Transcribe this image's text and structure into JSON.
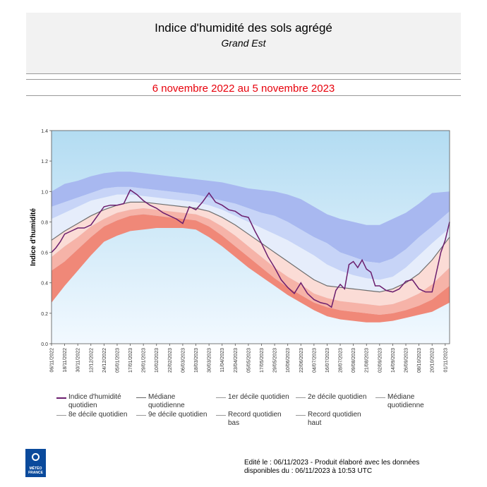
{
  "header": {
    "title": "Indice d'humidité des sols agrégé",
    "subtitle": "Grand Est",
    "period": "6 novembre 2022 au 5 novembre 2023"
  },
  "logo": {
    "text_line1": "MÉTÉO",
    "text_line2": "FRANCE",
    "color": "#0a4a9c"
  },
  "footer": {
    "line1": "Edité le : 06/11/2023 - Produit élaboré avec les données",
    "line2": "disponibles du : 06/11/2023 à 10:53 UTC"
  },
  "legend": [
    {
      "label": "Indice d'humidité quotidien",
      "color": "#6b1e6e"
    },
    {
      "label": "Médiane quotidienne",
      "color": "#666666"
    },
    {
      "label": "1er décile quotidien",
      "color": "#999999"
    },
    {
      "label": "2e décile quotidien",
      "color": "#999999"
    },
    {
      "label": "Médiane quotidienne",
      "color": "#999999"
    },
    {
      "label": "8e décile quotidien",
      "color": "#999999"
    },
    {
      "label": "9e décile quotidien",
      "color": "#999999"
    },
    {
      "label": "Record quotidien bas",
      "color": "#999999"
    },
    {
      "label": "Record quotidien haut",
      "color": "#999999"
    }
  ],
  "chart_data": {
    "type": "area",
    "ylabel": "Indice d'humidité",
    "ylim": [
      0.0,
      1.4
    ],
    "yticks": [
      "0.0",
      "0.2",
      "0.4",
      "0.6",
      "0.8",
      "1.0",
      "1.2",
      "1.4"
    ],
    "x_tick_labels": [
      "06/11/2022",
      "18/11/2022",
      "30/11/2022",
      "12/12/2022",
      "24/12/2022",
      "05/01/2023",
      "17/01/2023",
      "29/01/2023",
      "10/02/2023",
      "22/02/2023",
      "06/03/2023",
      "18/03/2023",
      "30/03/2023",
      "11/04/2023",
      "23/04/2023",
      "05/05/2023",
      "17/05/2023",
      "29/05/2023",
      "10/06/2023",
      "22/06/2023",
      "04/07/2023",
      "16/07/2023",
      "28/07/2023",
      "09/08/2023",
      "21/08/2023",
      "02/09/2023",
      "14/09/2023",
      "26/09/2023",
      "08/10/2023",
      "20/10/2023",
      "01/11/2023"
    ],
    "x_days": [
      0,
      12,
      24,
      36,
      48,
      60,
      72,
      84,
      96,
      108,
      120,
      132,
      144,
      156,
      168,
      180,
      192,
      204,
      216,
      228,
      240,
      252,
      264,
      276,
      288,
      300,
      312,
      324,
      336,
      348,
      360
    ],
    "x_range": [
      0,
      364
    ],
    "colors": {
      "record_high": "#a8b8f0",
      "d9_band": "#c7d4f7",
      "d8_band": "#e6edfb",
      "d2_band": "#fbdcd6",
      "d1_band": "#f6b3a8",
      "record_low": "#f08878",
      "index_line": "#6b1e6e",
      "median_line": "#6e6e6e",
      "background_top": "#b3dcf2",
      "background_bottom": "#f2f9ff"
    },
    "series": [
      {
        "name": "Record quotidien haut",
        "x": [
          0,
          12,
          24,
          36,
          48,
          60,
          72,
          84,
          96,
          108,
          120,
          132,
          144,
          156,
          168,
          180,
          192,
          204,
          216,
          228,
          240,
          252,
          264,
          276,
          288,
          300,
          312,
          324,
          336,
          348,
          364
        ],
        "values": [
          1.0,
          1.05,
          1.07,
          1.1,
          1.12,
          1.13,
          1.13,
          1.12,
          1.11,
          1.1,
          1.09,
          1.08,
          1.07,
          1.06,
          1.04,
          1.02,
          1.01,
          1.0,
          0.98,
          0.95,
          0.9,
          0.85,
          0.82,
          0.8,
          0.78,
          0.78,
          0.82,
          0.86,
          0.92,
          0.99,
          1.0
        ]
      },
      {
        "name": "9e décile quotidien",
        "x": [
          0,
          12,
          24,
          36,
          48,
          60,
          72,
          84,
          96,
          108,
          120,
          132,
          144,
          156,
          168,
          180,
          192,
          204,
          216,
          228,
          240,
          252,
          264,
          276,
          288,
          300,
          312,
          324,
          336,
          348,
          364
        ],
        "values": [
          0.9,
          0.93,
          0.96,
          0.99,
          1.02,
          1.03,
          1.03,
          1.02,
          1.01,
          1.0,
          0.99,
          0.98,
          0.96,
          0.94,
          0.92,
          0.89,
          0.86,
          0.84,
          0.8,
          0.75,
          0.7,
          0.66,
          0.6,
          0.57,
          0.54,
          0.53,
          0.56,
          0.62,
          0.7,
          0.77,
          0.87
        ]
      },
      {
        "name": "8e décile quotidien",
        "x": [
          0,
          12,
          24,
          36,
          48,
          60,
          72,
          84,
          96,
          108,
          120,
          132,
          144,
          156,
          168,
          180,
          192,
          204,
          216,
          228,
          240,
          252,
          264,
          276,
          288,
          300,
          312,
          324,
          336,
          348,
          364
        ],
        "values": [
          0.82,
          0.86,
          0.9,
          0.94,
          0.96,
          0.98,
          0.98,
          0.97,
          0.96,
          0.95,
          0.94,
          0.93,
          0.91,
          0.88,
          0.84,
          0.8,
          0.76,
          0.72,
          0.68,
          0.63,
          0.58,
          0.52,
          0.48,
          0.45,
          0.43,
          0.42,
          0.44,
          0.5,
          0.58,
          0.66,
          0.76
        ]
      },
      {
        "name": "Médiane quotidienne",
        "x": [
          0,
          12,
          24,
          36,
          48,
          60,
          72,
          84,
          96,
          108,
          120,
          132,
          144,
          156,
          168,
          180,
          192,
          204,
          216,
          228,
          240,
          252,
          264,
          276,
          288,
          300,
          312,
          324,
          336,
          348,
          364
        ],
        "values": [
          0.68,
          0.74,
          0.79,
          0.84,
          0.88,
          0.91,
          0.93,
          0.93,
          0.92,
          0.91,
          0.9,
          0.89,
          0.87,
          0.83,
          0.78,
          0.72,
          0.66,
          0.6,
          0.54,
          0.48,
          0.42,
          0.38,
          0.37,
          0.36,
          0.35,
          0.34,
          0.36,
          0.4,
          0.46,
          0.55,
          0.7
        ]
      },
      {
        "name": "2e décile quotidien",
        "x": [
          0,
          12,
          24,
          36,
          48,
          60,
          72,
          84,
          96,
          108,
          120,
          132,
          144,
          156,
          168,
          180,
          192,
          204,
          216,
          228,
          240,
          252,
          264,
          276,
          288,
          300,
          312,
          324,
          336,
          348,
          364
        ],
        "values": [
          0.57,
          0.64,
          0.7,
          0.77,
          0.82,
          0.86,
          0.88,
          0.89,
          0.88,
          0.87,
          0.86,
          0.85,
          0.82,
          0.77,
          0.71,
          0.64,
          0.57,
          0.5,
          0.44,
          0.39,
          0.33,
          0.3,
          0.28,
          0.27,
          0.26,
          0.25,
          0.26,
          0.29,
          0.33,
          0.39,
          0.5
        ]
      },
      {
        "name": "1er décile quotidien",
        "x": [
          0,
          12,
          24,
          36,
          48,
          60,
          72,
          84,
          96,
          108,
          120,
          132,
          144,
          156,
          168,
          180,
          192,
          204,
          216,
          228,
          240,
          252,
          264,
          276,
          288,
          300,
          312,
          324,
          336,
          348,
          364
        ],
        "values": [
          0.48,
          0.54,
          0.62,
          0.7,
          0.77,
          0.81,
          0.84,
          0.85,
          0.84,
          0.83,
          0.82,
          0.81,
          0.77,
          0.71,
          0.64,
          0.57,
          0.5,
          0.43,
          0.37,
          0.32,
          0.27,
          0.24,
          0.22,
          0.21,
          0.2,
          0.19,
          0.2,
          0.22,
          0.25,
          0.29,
          0.38
        ]
      },
      {
        "name": "Record quotidien bas",
        "x": [
          0,
          12,
          24,
          36,
          48,
          60,
          72,
          84,
          96,
          108,
          120,
          132,
          144,
          156,
          168,
          180,
          192,
          204,
          216,
          228,
          240,
          252,
          264,
          276,
          288,
          300,
          312,
          324,
          336,
          348,
          364
        ],
        "values": [
          0.27,
          0.38,
          0.48,
          0.58,
          0.67,
          0.71,
          0.74,
          0.75,
          0.76,
          0.76,
          0.76,
          0.75,
          0.7,
          0.64,
          0.57,
          0.5,
          0.44,
          0.38,
          0.32,
          0.27,
          0.22,
          0.18,
          0.16,
          0.15,
          0.14,
          0.14,
          0.15,
          0.17,
          0.19,
          0.21,
          0.27
        ]
      },
      {
        "name": "Indice d'humidité quotidien",
        "x": [
          0,
          4,
          8,
          12,
          18,
          24,
          30,
          36,
          42,
          48,
          54,
          60,
          66,
          72,
          78,
          84,
          90,
          96,
          102,
          108,
          114,
          120,
          126,
          132,
          138,
          144,
          150,
          156,
          162,
          168,
          174,
          180,
          186,
          192,
          198,
          204,
          210,
          216,
          222,
          228,
          234,
          240,
          246,
          252,
          256,
          260,
          264,
          268,
          272,
          276,
          280,
          284,
          288,
          292,
          296,
          300,
          306,
          312,
          318,
          324,
          330,
          336,
          342,
          348,
          352,
          356,
          360,
          364
        ],
        "values": [
          0.6,
          0.63,
          0.67,
          0.72,
          0.74,
          0.76,
          0.76,
          0.78,
          0.84,
          0.9,
          0.91,
          0.91,
          0.92,
          1.01,
          0.98,
          0.94,
          0.91,
          0.89,
          0.86,
          0.84,
          0.82,
          0.79,
          0.9,
          0.88,
          0.93,
          0.99,
          0.93,
          0.91,
          0.88,
          0.87,
          0.84,
          0.83,
          0.74,
          0.66,
          0.57,
          0.5,
          0.42,
          0.37,
          0.33,
          0.4,
          0.33,
          0.29,
          0.27,
          0.26,
          0.24,
          0.35,
          0.39,
          0.36,
          0.52,
          0.54,
          0.5,
          0.55,
          0.49,
          0.47,
          0.38,
          0.38,
          0.35,
          0.34,
          0.36,
          0.41,
          0.42,
          0.36,
          0.34,
          0.34,
          0.47,
          0.6,
          0.68,
          0.8
        ]
      }
    ]
  }
}
